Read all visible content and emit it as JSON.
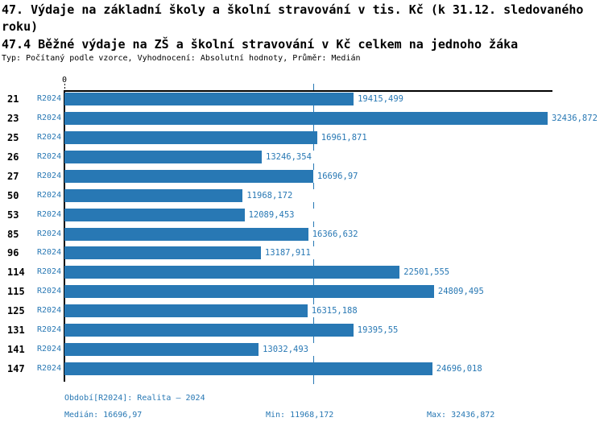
{
  "header": {
    "title": "47. Výdaje na základní školy a školní stravování v tis. Kč (k 31.12. sledovaného roku)",
    "subtitle": "47.4 Běžné výdaje na ZŠ a školní stravování v Kč celkem na jednoho žáka",
    "meta": "Typ: Počítaný podle vzorce, Vyhodnocení: Absolutní hodnoty, Průměr: Medián"
  },
  "chart_data": {
    "type": "bar",
    "orientation": "horizontal",
    "series_label": "R2024",
    "categories": [
      "21",
      "23",
      "25",
      "26",
      "27",
      "50",
      "53",
      "85",
      "96",
      "114",
      "115",
      "125",
      "131",
      "141",
      "147"
    ],
    "values": [
      19415.499,
      32436.872,
      16961.871,
      13246.354,
      16696.97,
      11968.172,
      12089.453,
      16366.632,
      13187.911,
      22501.555,
      24809.495,
      16315.188,
      19395.55,
      13032.493,
      24696.018
    ],
    "value_labels": [
      "19415,499",
      "32436,872",
      "16961,871",
      "13246,354",
      "16696,97",
      "11968,172",
      "12089,453",
      "16366,632",
      "13187,911",
      "22501,555",
      "24809,495",
      "16315,188",
      "19395,55",
      "13032,493",
      "24696,018"
    ],
    "x_axis_zero_label": "0",
    "xlim": [
      0,
      32436.872
    ],
    "median": 16696.97,
    "min": 11968.172,
    "max": 32436.872,
    "bar_color": "#2878b4",
    "median_line_color": "#2878b4",
    "grid": false,
    "legend_position": "bottom"
  },
  "footer": {
    "period": "Období[R2024]: Realita – 2024",
    "median": "Medián: 16696,97",
    "min": "Min: 11968,172",
    "max": "Max: 32436,872"
  }
}
